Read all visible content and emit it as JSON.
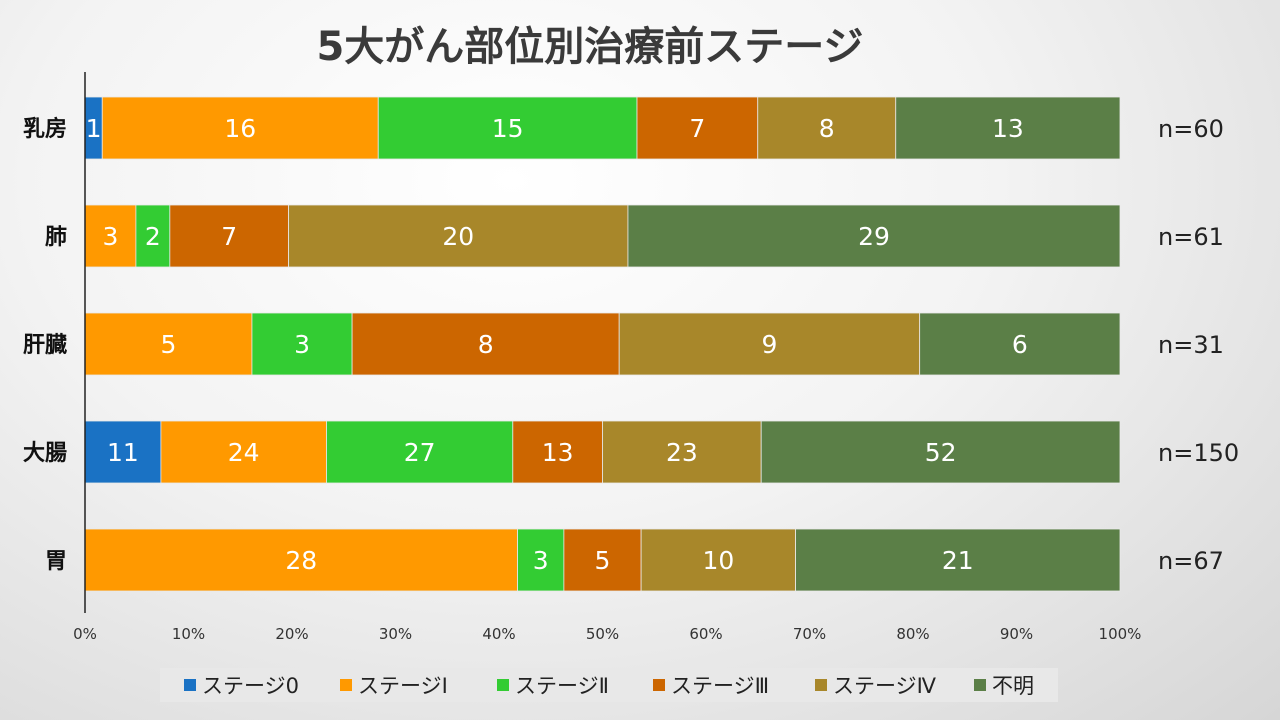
{
  "chart_data": {
    "type": "bar",
    "orientation": "horizontal",
    "stacked": "percent",
    "title": "5大がん部位別治療前ステージ",
    "categories": [
      "乳房",
      "肺",
      "肝臓",
      "大腸",
      "胃"
    ],
    "n_labels": [
      "n=60",
      "n=61",
      "n=31",
      "n=150",
      "n=67"
    ],
    "series": [
      {
        "name": "ステージ0",
        "color": "#1a72c4",
        "values": [
          1,
          0,
          0,
          11,
          0
        ]
      },
      {
        "name": "ステージⅠ",
        "color": "#ff9900",
        "values": [
          16,
          3,
          5,
          24,
          28
        ]
      },
      {
        "name": "ステージⅡ",
        "color": "#33cc33",
        "values": [
          15,
          2,
          3,
          27,
          3
        ]
      },
      {
        "name": "ステージⅢ",
        "color": "#cc6600",
        "values": [
          7,
          7,
          8,
          13,
          5
        ]
      },
      {
        "name": "ステージⅣ",
        "color": "#a8872a",
        "values": [
          8,
          20,
          9,
          23,
          10
        ]
      },
      {
        "name": "不明",
        "color": "#5b7f47",
        "values": [
          13,
          29,
          6,
          52,
          21
        ]
      }
    ],
    "x_ticks": [
      "0%",
      "10%",
      "20%",
      "30%",
      "40%",
      "50%",
      "60%",
      "70%",
      "80%",
      "90%",
      "100%"
    ],
    "xlim": [
      0,
      100
    ],
    "grid": false,
    "legend_position": "bottom"
  }
}
